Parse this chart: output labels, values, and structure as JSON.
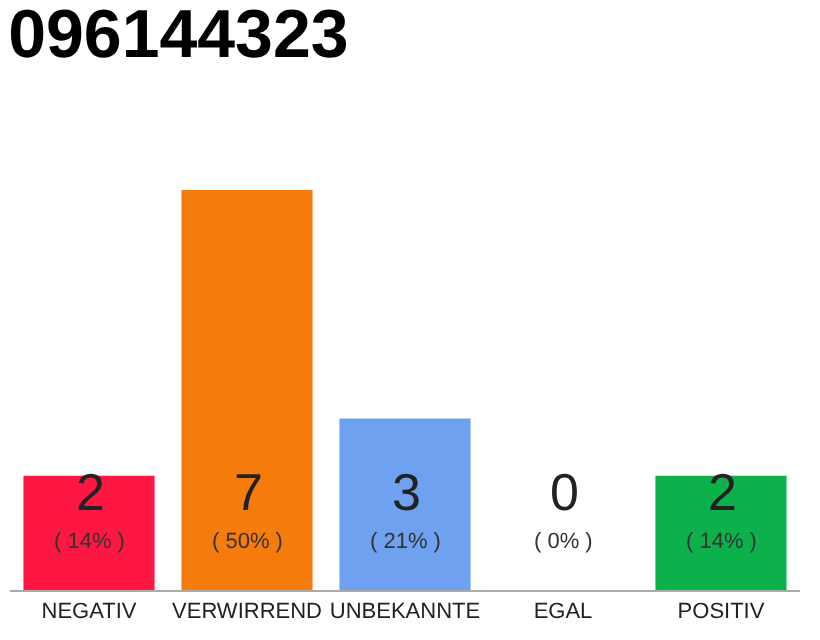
{
  "chart_data": {
    "type": "bar",
    "title": "096144323",
    "categories": [
      "NEGATIV",
      "VERWIRREND",
      "UNBEKANNTE",
      "EGAL",
      "POSITIV"
    ],
    "values": [
      2,
      7,
      3,
      0,
      2
    ],
    "colors": [
      "#ff1744",
      "#f57c0c",
      "#6ea1ef",
      "#aaaaaa",
      "#0db14b"
    ],
    "ylim": [
      0,
      7
    ],
    "tick_labels": "x",
    "grid": false,
    "legend": false,
    "value_labels": [
      "2\n( 14% )",
      "7\n( 50% )",
      "3\n( 21% )",
      "0\n( 0% )",
      "2\n( 14% )"
    ]
  }
}
